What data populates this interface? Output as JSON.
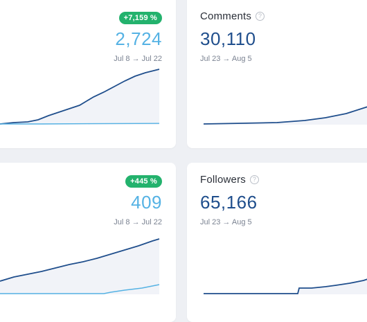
{
  "cards": {
    "top_left": {
      "badge": "+7,159 %",
      "value": "2,724",
      "range": "Jul 8 → Jul 22"
    },
    "top_right": {
      "title": "Comments",
      "value": "30,110",
      "range": "Jul 23 → Aug 5"
    },
    "bottom_left": {
      "badge": "+445 %",
      "value": "409",
      "range": "Jul 8 → Jul 22"
    },
    "bottom_right": {
      "title": "Followers",
      "value": "65,166",
      "range": "Jul 23 → Aug 5"
    }
  },
  "colors": {
    "badge": "#23b26d",
    "current_line": "#1f4e8c",
    "previous_line": "#55b2e4",
    "fill": "#f1f3f8"
  },
  "icons": {
    "help": "question-circle-icon"
  }
}
